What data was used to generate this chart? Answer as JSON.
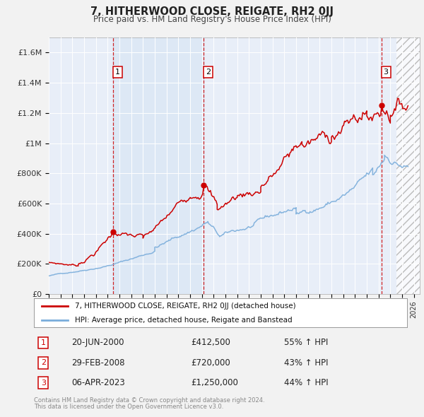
{
  "title": "7, HITHERWOOD CLOSE, REIGATE, RH2 0JJ",
  "subtitle": "Price paid vs. HM Land Registry's House Price Index (HPI)",
  "legend_line1": "7, HITHERWOOD CLOSE, REIGATE, RH2 0JJ (detached house)",
  "legend_line2": "HPI: Average price, detached house, Reigate and Banstead",
  "footer1": "Contains HM Land Registry data © Crown copyright and database right 2024.",
  "footer2": "This data is licensed under the Open Government Licence v3.0.",
  "sale_color": "#cc0000",
  "hpi_color": "#7aaddb",
  "grid_color": "#cccccc",
  "bg_color": "#e8eef8",
  "fig_bg": "#f2f2f2",
  "shade_color": "#dce8f5",
  "xmin": 1995.0,
  "xmax": 2026.5,
  "ymin": 0,
  "ymax": 1700000,
  "yticks": [
    0,
    200000,
    400000,
    600000,
    800000,
    1000000,
    1200000,
    1400000,
    1600000
  ],
  "ytick_labels": [
    "£0",
    "£200K",
    "£400K",
    "£600K",
    "£800K",
    "£1M",
    "£1.2M",
    "£1.4M",
    "£1.6M"
  ],
  "sale_dates": [
    2000.47,
    2008.16,
    2023.27
  ],
  "sale_prices": [
    412500,
    720000,
    1250000
  ],
  "sale_labels": [
    "1",
    "2",
    "3"
  ],
  "annotations": [
    {
      "num": "1",
      "date": "20-JUN-2000",
      "price": "£412,500",
      "hpi": "55% ↑ HPI"
    },
    {
      "num": "2",
      "date": "29-FEB-2008",
      "price": "£720,000",
      "hpi": "43% ↑ HPI"
    },
    {
      "num": "3",
      "date": "06-APR-2023",
      "price": "£1,250,000",
      "hpi": "44% ↑ HPI"
    }
  ],
  "shade_region": [
    2000.47,
    2008.16
  ],
  "hatch_region": [
    2024.5,
    2026.5
  ]
}
